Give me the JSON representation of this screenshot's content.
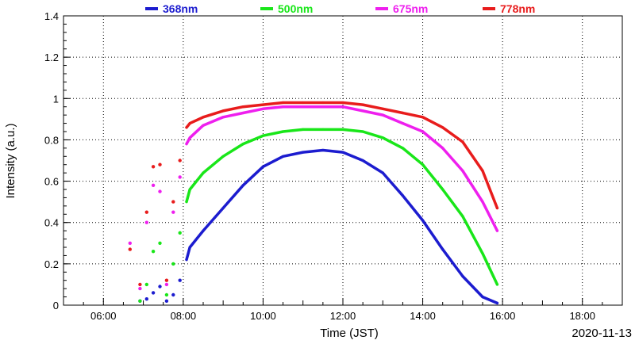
{
  "chart_data": {
    "type": "line",
    "xlabel": "Time (JST)",
    "ylabel": "Intensity (a.u.)",
    "date": "2020-11-13",
    "xlim": [
      "05:00",
      "19:00"
    ],
    "ylim": [
      0,
      1.4
    ],
    "x_ticks": [
      "06:00",
      "08:00",
      "10:00",
      "12:00",
      "14:00",
      "16:00",
      "18:00"
    ],
    "y_ticks": [
      "0",
      "0.2",
      "0.4",
      "0.6",
      "0.8",
      "1",
      "1.2",
      "1.4"
    ],
    "grid": true,
    "legend_position": "top",
    "series": [
      {
        "name": "368nm",
        "color": "#1c1ccf",
        "values": [
          [
            "06:55",
            0.02
          ],
          [
            "07:05",
            0.03
          ],
          [
            "07:15",
            0.06
          ],
          [
            "07:25",
            0.09
          ],
          [
            "07:35",
            0.02
          ],
          [
            "07:45",
            0.05
          ],
          [
            "07:55",
            0.12
          ],
          [
            "08:05",
            0.22
          ],
          [
            "08:10",
            0.28
          ],
          [
            "08:30",
            0.36
          ],
          [
            "09:00",
            0.47
          ],
          [
            "09:30",
            0.58
          ],
          [
            "10:00",
            0.67
          ],
          [
            "10:30",
            0.72
          ],
          [
            "11:00",
            0.74
          ],
          [
            "11:30",
            0.75
          ],
          [
            "12:00",
            0.74
          ],
          [
            "12:30",
            0.7
          ],
          [
            "13:00",
            0.64
          ],
          [
            "13:30",
            0.53
          ],
          [
            "14:00",
            0.41
          ],
          [
            "14:30",
            0.27
          ],
          [
            "15:00",
            0.14
          ],
          [
            "15:30",
            0.04
          ],
          [
            "15:52",
            0.01
          ]
        ]
      },
      {
        "name": "500nm",
        "color": "#19e619",
        "values": [
          [
            "06:55",
            0.02
          ],
          [
            "07:05",
            0.1
          ],
          [
            "07:15",
            0.26
          ],
          [
            "07:25",
            0.3
          ],
          [
            "07:35",
            0.05
          ],
          [
            "07:45",
            0.2
          ],
          [
            "07:55",
            0.35
          ],
          [
            "08:05",
            0.5
          ],
          [
            "08:10",
            0.56
          ],
          [
            "08:30",
            0.64
          ],
          [
            "09:00",
            0.72
          ],
          [
            "09:30",
            0.78
          ],
          [
            "10:00",
            0.82
          ],
          [
            "10:30",
            0.84
          ],
          [
            "11:00",
            0.85
          ],
          [
            "11:30",
            0.85
          ],
          [
            "12:00",
            0.85
          ],
          [
            "12:30",
            0.84
          ],
          [
            "13:00",
            0.81
          ],
          [
            "13:30",
            0.76
          ],
          [
            "14:00",
            0.68
          ],
          [
            "14:30",
            0.56
          ],
          [
            "15:00",
            0.43
          ],
          [
            "15:30",
            0.25
          ],
          [
            "15:52",
            0.1
          ]
        ]
      },
      {
        "name": "675nm",
        "color": "#ee1fee",
        "values": [
          [
            "06:40",
            0.3
          ],
          [
            "06:55",
            0.08
          ],
          [
            "07:05",
            0.4
          ],
          [
            "07:15",
            0.58
          ],
          [
            "07:25",
            0.55
          ],
          [
            "07:35",
            0.1
          ],
          [
            "07:45",
            0.45
          ],
          [
            "07:55",
            0.62
          ],
          [
            "08:05",
            0.78
          ],
          [
            "08:10",
            0.81
          ],
          [
            "08:30",
            0.87
          ],
          [
            "09:00",
            0.91
          ],
          [
            "09:30",
            0.93
          ],
          [
            "10:00",
            0.95
          ],
          [
            "10:30",
            0.96
          ],
          [
            "11:00",
            0.96
          ],
          [
            "11:30",
            0.96
          ],
          [
            "12:00",
            0.96
          ],
          [
            "12:30",
            0.94
          ],
          [
            "13:00",
            0.92
          ],
          [
            "13:30",
            0.88
          ],
          [
            "14:00",
            0.84
          ],
          [
            "14:30",
            0.76
          ],
          [
            "15:00",
            0.65
          ],
          [
            "15:30",
            0.5
          ],
          [
            "15:52",
            0.36
          ]
        ]
      },
      {
        "name": "778nm",
        "color": "#e81c1c",
        "values": [
          [
            "06:40",
            0.27
          ],
          [
            "06:55",
            0.1
          ],
          [
            "07:05",
            0.45
          ],
          [
            "07:15",
            0.67
          ],
          [
            "07:25",
            0.68
          ],
          [
            "07:35",
            0.12
          ],
          [
            "07:45",
            0.5
          ],
          [
            "07:55",
            0.7
          ],
          [
            "08:05",
            0.86
          ],
          [
            "08:10",
            0.88
          ],
          [
            "08:30",
            0.91
          ],
          [
            "09:00",
            0.94
          ],
          [
            "09:30",
            0.96
          ],
          [
            "10:00",
            0.97
          ],
          [
            "10:30",
            0.98
          ],
          [
            "11:00",
            0.98
          ],
          [
            "11:30",
            0.98
          ],
          [
            "12:00",
            0.98
          ],
          [
            "12:30",
            0.97
          ],
          [
            "13:00",
            0.95
          ],
          [
            "13:30",
            0.93
          ],
          [
            "14:00",
            0.91
          ],
          [
            "14:30",
            0.86
          ],
          [
            "15:00",
            0.79
          ],
          [
            "15:30",
            0.65
          ],
          [
            "15:52",
            0.47
          ]
        ]
      }
    ]
  }
}
